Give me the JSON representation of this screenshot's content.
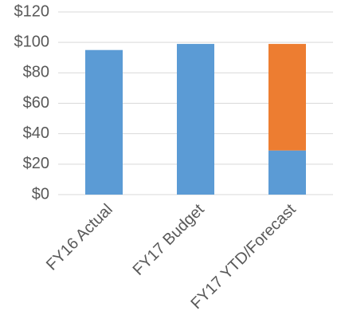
{
  "chart_data": {
    "type": "stacked_bar",
    "categories": [
      "FY16 Actual",
      "FY17 Budget",
      "FY17 YTD/Forecast"
    ],
    "series": [
      {
        "color": "#5b9bd5",
        "values": [
          95,
          99,
          29
        ]
      },
      {
        "color": "#ed7d31",
        "values": [
          null,
          null,
          70
        ]
      }
    ],
    "ylim": [
      0,
      120
    ],
    "yticks": [
      {
        "value": 0,
        "label": "$0"
      },
      {
        "value": 20,
        "label": "$20"
      },
      {
        "value": 40,
        "label": "$40"
      },
      {
        "value": 60,
        "label": "$60"
      },
      {
        "value": 80,
        "label": "$80"
      },
      {
        "value": 100,
        "label": "$100"
      },
      {
        "value": 120,
        "label": "$120"
      }
    ],
    "grid": true
  }
}
